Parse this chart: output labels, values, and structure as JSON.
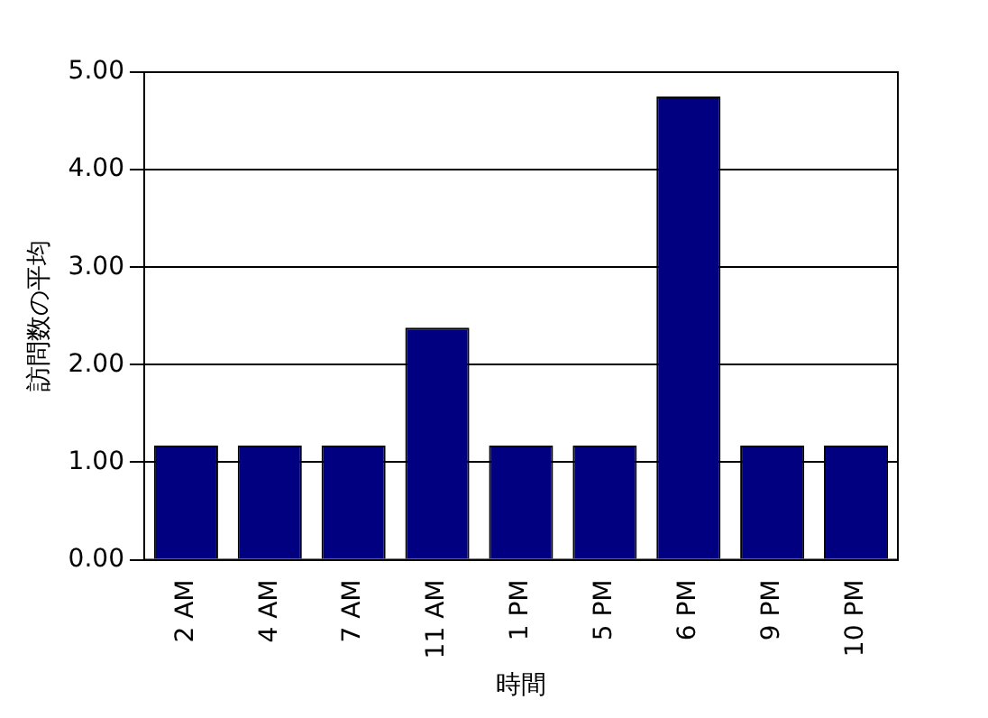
{
  "chart_data": {
    "type": "bar",
    "xlabel": "時間",
    "ylabel": "訪問数の平均",
    "categories": [
      "2 AM",
      "4 AM",
      "7 AM",
      "11 AM",
      "1 PM",
      "5 PM",
      "6 PM",
      "9 PM",
      "10 PM"
    ],
    "values": [
      1.17,
      1.17,
      1.17,
      2.38,
      1.17,
      1.17,
      4.75,
      1.17,
      1.17
    ],
    "color": "#000080",
    "ylim": [
      0,
      5
    ],
    "yticks": [
      {
        "value": 0,
        "label": "0.00"
      },
      {
        "value": 1,
        "label": "1.00"
      },
      {
        "value": 2,
        "label": "2.00"
      },
      {
        "value": 3,
        "label": "3.00"
      },
      {
        "value": 4,
        "label": "4.00"
      },
      {
        "value": 5,
        "label": "5.00"
      }
    ],
    "grid": "y",
    "legend": false
  }
}
